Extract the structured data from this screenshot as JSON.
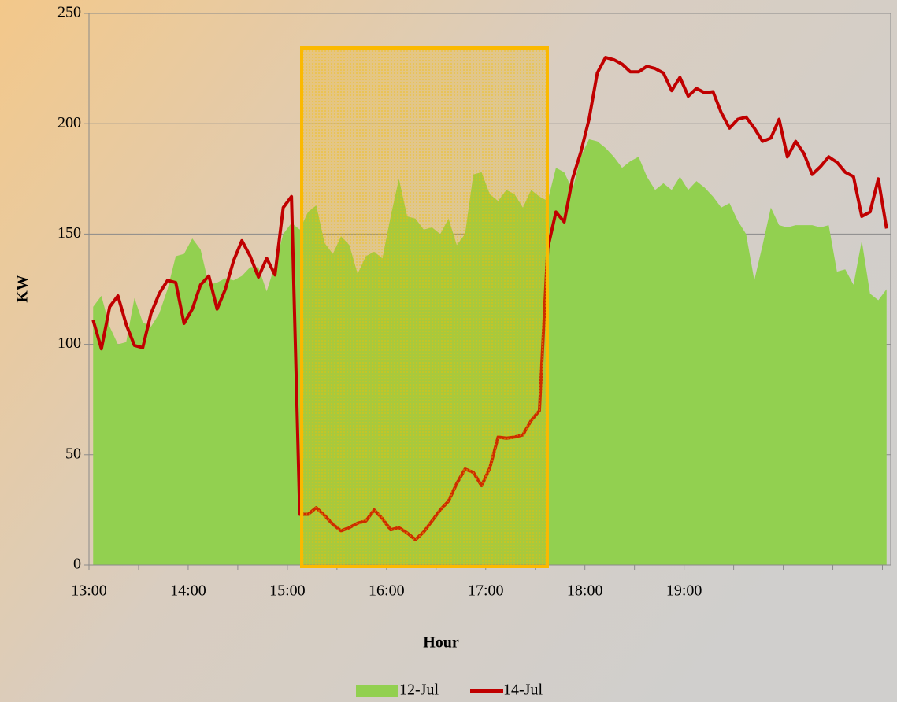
{
  "chart_data": {
    "type": "area_line",
    "xlabel": "Hour",
    "ylabel": "KW",
    "categories": [
      "13:00",
      null,
      null,
      null,
      null,
      null,
      null,
      null,
      null,
      null,
      null,
      null,
      "14:00",
      null,
      null,
      null,
      null,
      null,
      null,
      null,
      null,
      null,
      null,
      null,
      "15:00",
      null,
      null,
      null,
      null,
      null,
      null,
      null,
      null,
      null,
      null,
      null,
      "16:00",
      null,
      null,
      null,
      null,
      null,
      null,
      null,
      null,
      null,
      null,
      null,
      "17:00",
      null,
      null,
      null,
      null,
      null,
      null,
      null,
      null,
      null,
      null,
      null,
      "18:00",
      null,
      null,
      null,
      null,
      null,
      null,
      null,
      null,
      null,
      null,
      null,
      "19:00",
      null,
      null,
      null,
      null,
      null,
      null,
      null,
      null,
      null,
      null,
      null,
      null,
      null,
      null,
      null,
      null,
      null,
      null,
      null,
      null,
      null,
      null,
      null,
      null
    ],
    "series": [
      {
        "name": "12-Jul",
        "type": "area",
        "color": "#92d050",
        "values": [
          117,
          122,
          108,
          100,
          101,
          121,
          110,
          108,
          114,
          125,
          140,
          141,
          148,
          143,
          127,
          128,
          130,
          129,
          131,
          135,
          135,
          124,
          136,
          150,
          155,
          152,
          160,
          163,
          146,
          141,
          149,
          145,
          132,
          140,
          142,
          139,
          158,
          175,
          158,
          157,
          152,
          153,
          150,
          157,
          145,
          150,
          177,
          178,
          168,
          165,
          170,
          168,
          162,
          170,
          167,
          165,
          180,
          178,
          170,
          185,
          193,
          192,
          189,
          185,
          180,
          183,
          185,
          176,
          170,
          173,
          170,
          176,
          170,
          174,
          171,
          167,
          162,
          164,
          156,
          150,
          129,
          145,
          162,
          154,
          153,
          154,
          154,
          154,
          153,
          154,
          133,
          134,
          127,
          147,
          123,
          120,
          125
        ]
      },
      {
        "name": "14-Jul",
        "type": "line",
        "color": "#c00000",
        "values": [
          111,
          98,
          117,
          122,
          109,
          99.5,
          98.5,
          114,
          123,
          129,
          128,
          109.5,
          116,
          127,
          131,
          116,
          125,
          138,
          147,
          140,
          130.5,
          139,
          131.5,
          162,
          167,
          23,
          23,
          26,
          22.5,
          18.5,
          15.5,
          17,
          19,
          20,
          25,
          21,
          16,
          17,
          14.5,
          11.5,
          15,
          20,
          25,
          29,
          37,
          43.5,
          42,
          36,
          44,
          58,
          57.5,
          58,
          59,
          65.5,
          70,
          143.5,
          160,
          155.5,
          175,
          187,
          202,
          223,
          230,
          229,
          227,
          223.5,
          223.5,
          226,
          225,
          223,
          215,
          221,
          212.5,
          216,
          214,
          214.5,
          205,
          198,
          202,
          203,
          198,
          192,
          193.5,
          202,
          185,
          192,
          186.5,
          177,
          180.5,
          185,
          182.5,
          178,
          176,
          158,
          160,
          175,
          152.5
        ]
      }
    ],
    "ylim": [
      0,
      250
    ],
    "yticks": [
      0,
      50,
      100,
      150,
      200,
      250
    ],
    "grid": true,
    "legend": "bottom"
  }
}
